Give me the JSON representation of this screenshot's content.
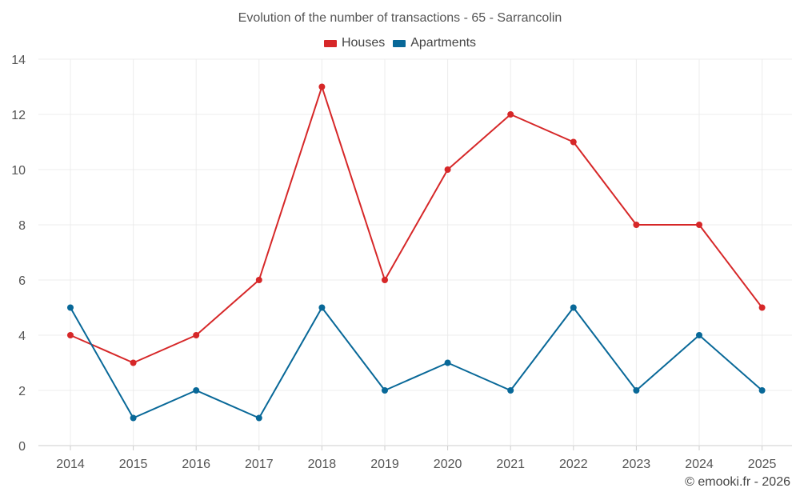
{
  "chart_data": {
    "type": "line",
    "title": "Evolution of the number of transactions - 65 - Sarrancolin",
    "categories": [
      "2014",
      "2015",
      "2016",
      "2017",
      "2018",
      "2019",
      "2020",
      "2021",
      "2022",
      "2023",
      "2024",
      "2025"
    ],
    "series": [
      {
        "name": "Houses",
        "color": "#d62728",
        "values": [
          4,
          3,
          4,
          6,
          13,
          6,
          10,
          12,
          11,
          8,
          8,
          5
        ]
      },
      {
        "name": "Apartments",
        "color": "#086898",
        "values": [
          5,
          1,
          2,
          1,
          5,
          2,
          3,
          2,
          5,
          2,
          4,
          2
        ]
      }
    ],
    "ylim": [
      0,
      14
    ],
    "yticks": [
      "0",
      "2",
      "4",
      "6",
      "8",
      "10",
      "12",
      "14"
    ],
    "xlabel": "",
    "ylabel": "",
    "grid": true,
    "legend": "top-center"
  },
  "credit": "© emooki.fr - 2026"
}
